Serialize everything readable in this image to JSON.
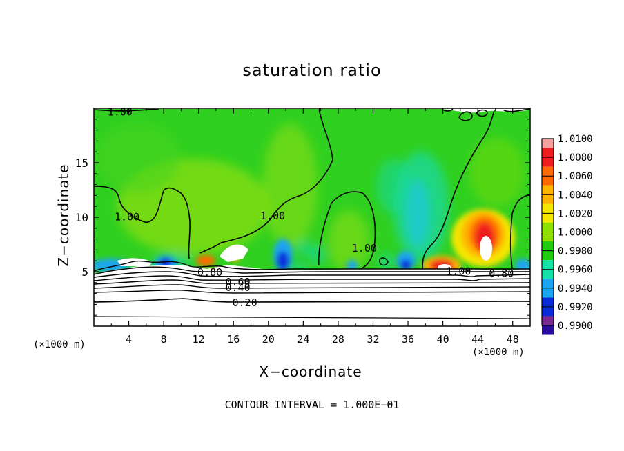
{
  "chart_data": {
    "type": "heatmap",
    "title": "saturation ratio",
    "xlabel": "X−coordinate",
    "ylabel": "Z−coordinate",
    "x_unit_label": "(×1000 m)",
    "x_ticks": [
      "4",
      "8",
      "12",
      "16",
      "20",
      "24",
      "28",
      "32",
      "36",
      "40",
      "44",
      "48"
    ],
    "x_tick_values": [
      4,
      8,
      12,
      16,
      20,
      24,
      28,
      32,
      36,
      40,
      44,
      48
    ],
    "y_ticks": [
      "5",
      "10",
      "15"
    ],
    "y_tick_values": [
      5,
      10,
      15
    ],
    "xlim": [
      0,
      50
    ],
    "ylim": [
      0,
      20
    ],
    "colorbar": {
      "labels": [
        "1.0100",
        "1.0080",
        "1.0060",
        "1.0040",
        "1.0020",
        "1.0000",
        "0.9980",
        "0.9960",
        "0.9940",
        "0.9920",
        "0.9900"
      ],
      "colors": [
        "#f4a0a0",
        "#ef1e1e",
        "#ff6a00",
        "#ffb400",
        "#f5e600",
        "#8ee000",
        "#22cc10",
        "#14e0a8",
        "#1aa6f0",
        "#0a2cd8",
        "#2a0aa0",
        "#7a2a90"
      ]
    },
    "contour_labels": [
      {
        "text": "1.00",
        "x": 3.8,
        "y": 10.1
      },
      {
        "text": "1.00",
        "x": 20.5,
        "y": 10.2
      },
      {
        "text": "1.00",
        "x": 31,
        "y": 7.2
      },
      {
        "text": "1.00",
        "x": 41.8,
        "y": 5.1
      },
      {
        "text": "1.00",
        "x": 3,
        "y": 19.7
      },
      {
        "text": "0.80",
        "x": 13.3,
        "y": 5.0
      },
      {
        "text": "0.80",
        "x": 46.7,
        "y": 4.9
      },
      {
        "text": "0.60",
        "x": 16.5,
        "y": 4.1
      },
      {
        "text": "0.40",
        "x": 16.5,
        "y": 3.6
      },
      {
        "text": "0.20",
        "x": 17.3,
        "y": 2.2
      }
    ],
    "footnote": "CONTOUR INTERVAL =  1.000E−01"
  }
}
